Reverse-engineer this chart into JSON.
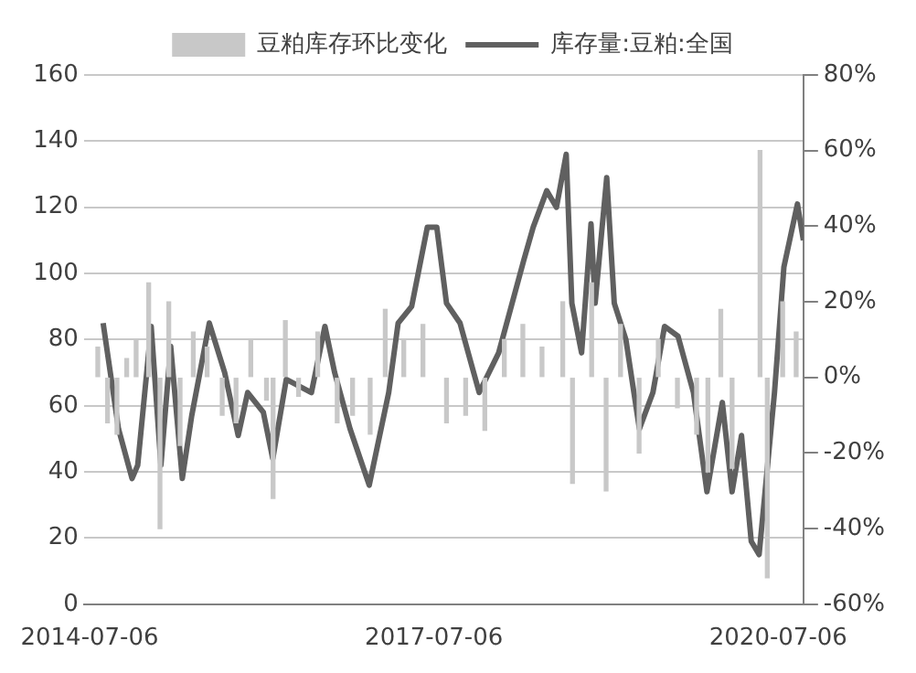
{
  "chart_data": {
    "type": "line",
    "legend": "top",
    "grid": "y",
    "xlim": [
      "2014-06-18",
      "2020-09-24"
    ],
    "xticks": [
      "2014-07-06",
      "2017-07-06",
      "2020-07-06"
    ],
    "ylim": [
      0,
      160
    ],
    "yticks": [
      0,
      20,
      40,
      60,
      80,
      100,
      120,
      140,
      160
    ],
    "y2lim": [
      -60,
      80
    ],
    "y2ticks": [
      {
        "value": -60,
        "label": "-60%"
      },
      {
        "value": -40,
        "label": "-40%"
      },
      {
        "value": -20,
        "label": "-20%"
      },
      {
        "value": 0,
        "label": "0%"
      },
      {
        "value": 20,
        "label": "20%"
      },
      {
        "value": 40,
        "label": "40%"
      },
      {
        "value": 60,
        "label": "60%"
      },
      {
        "value": 80,
        "label": "80%"
      }
    ],
    "series": [
      {
        "name": "豆粕库存环比变化",
        "type": "bar",
        "axis": "y2",
        "color": "#c8c8c8",
        "x": [
          "2014-08-01",
          "2014-09-01",
          "2014-10-01",
          "2014-11-01",
          "2014-12-01",
          "2015-01-10",
          "2015-02-15",
          "2015-03-15",
          "2015-04-20",
          "2015-06-01",
          "2015-07-15",
          "2015-09-01",
          "2015-10-15",
          "2015-12-01",
          "2016-01-20",
          "2016-02-10",
          "2016-03-20",
          "2016-05-01",
          "2016-07-01",
          "2016-09-01",
          "2016-10-20",
          "2016-12-15",
          "2017-02-01",
          "2017-04-01",
          "2017-06-01",
          "2017-08-15",
          "2017-10-15",
          "2017-12-15",
          "2018-02-15",
          "2018-04-15",
          "2018-06-15",
          "2018-08-20",
          "2018-09-20",
          "2018-11-20",
          "2019-01-05",
          "2019-02-20",
          "2019-04-20",
          "2019-06-20",
          "2019-08-20",
          "2019-10-20",
          "2019-11-25",
          "2020-01-05",
          "2020-02-10",
          "2020-05-09",
          "2020-06-01",
          "2020-07-20",
          "2020-09-01"
        ],
        "values": [
          8,
          -12,
          -15,
          5,
          10,
          25,
          -40,
          20,
          -18,
          12,
          8,
          -10,
          -12,
          10,
          -6,
          -32,
          15,
          -5,
          12,
          -12,
          -10,
          -15,
          18,
          10,
          14,
          -12,
          -10,
          -14,
          10,
          14,
          8,
          20,
          -28,
          25,
          -30,
          14,
          -20,
          10,
          -8,
          -15,
          -25,
          18,
          -24,
          60,
          -53,
          20,
          12
        ]
      },
      {
        "name": "库存量:豆粕:全国",
        "axis": "y",
        "color": "#606060",
        "x": [
          "2014-08-18",
          "2014-10-06",
          "2014-11-18",
          "2014-12-06",
          "2015-01-18",
          "2015-02-18",
          "2015-03-21",
          "2015-04-27",
          "2015-05-27",
          "2015-07-22",
          "2015-09-09",
          "2015-10-22",
          "2015-11-21",
          "2016-01-10",
          "2016-02-09",
          "2016-03-23",
          "2016-06-11",
          "2016-07-24",
          "2016-08-24",
          "2016-10-12",
          "2016-12-12",
          "2017-02-12",
          "2017-03-14",
          "2017-04-26",
          "2017-06-15",
          "2017-07-15",
          "2017-08-15",
          "2017-09-27",
          "2017-11-27",
          "2018-01-28",
          "2018-04-18",
          "2018-05-18",
          "2018-06-30",
          "2018-07-31",
          "2018-08-31",
          "2018-09-18",
          "2018-10-19",
          "2018-11-18",
          "2018-12-01",
          "2019-01-07",
          "2019-01-31",
          "2019-03-09",
          "2019-04-21",
          "2019-06-03",
          "2019-07-10",
          "2019-08-22",
          "2019-10-10",
          "2019-11-22",
          "2020-01-10",
          "2020-02-10",
          "2020-03-11",
          "2020-04-11",
          "2020-05-06",
          "2020-06-24",
          "2020-07-24",
          "2020-09-05",
          "2020-09-24"
        ],
        "values": [
          85,
          53,
          38,
          42,
          84,
          42,
          78,
          38,
          57,
          85,
          70,
          51,
          64,
          58,
          44,
          68,
          64,
          84,
          70,
          53,
          36,
          64,
          85,
          90,
          114,
          114,
          91,
          85,
          64,
          76,
          104,
          114,
          125,
          120,
          136,
          91,
          76,
          115,
          91,
          129,
          91,
          80,
          53,
          64,
          84,
          81,
          64,
          34,
          61,
          34,
          51,
          19,
          15,
          64,
          102,
          121,
          110
        ]
      }
    ]
  }
}
